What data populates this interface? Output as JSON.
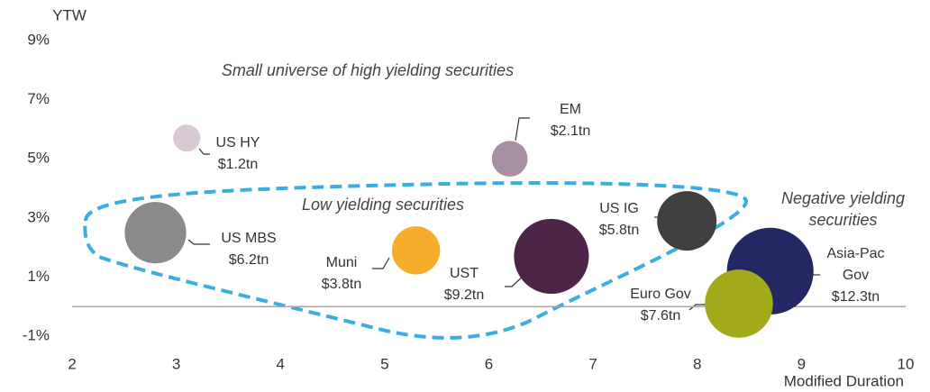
{
  "chart_data": {
    "type": "bubble",
    "x_label": "Modified Duration",
    "y_label": "YTW",
    "xlim": [
      2,
      10
    ],
    "xticks": [
      2,
      3,
      4,
      5,
      6,
      7,
      8,
      9,
      10
    ],
    "ylim": [
      -1,
      9
    ],
    "yticks": [
      {
        "value": -1,
        "label": "-1%"
      },
      {
        "value": 1,
        "label": "1%"
      },
      {
        "value": 3,
        "label": "3%"
      },
      {
        "value": 5,
        "label": "5%"
      },
      {
        "value": 7,
        "label": "7%"
      },
      {
        "value": 9,
        "label": "9%"
      }
    ],
    "annotations": [
      "Small universe of high yielding securities",
      "Low yielding securities",
      "Negative yielding securities"
    ],
    "series": [
      {
        "name": "US HY",
        "color": "#d9c9d4",
        "x": 3.1,
        "y": 5.7,
        "size": 1.2,
        "size_label": "$1.2tn"
      },
      {
        "name": "EM",
        "color": "#a88fa3",
        "x": 6.2,
        "y": 5.0,
        "size": 2.1,
        "size_label": "$2.1tn"
      },
      {
        "name": "US MBS",
        "color": "#8a8a8a",
        "x": 2.8,
        "y": 2.5,
        "size": 6.2,
        "size_label": "$6.2tn"
      },
      {
        "name": "Muni",
        "color": "#f5ad2b",
        "x": 5.3,
        "y": 1.9,
        "size": 3.8,
        "size_label": "$3.8tn"
      },
      {
        "name": "UST",
        "color": "#4d2347",
        "x": 6.6,
        "y": 1.7,
        "size": 9.2,
        "size_label": "$9.2tn"
      },
      {
        "name": "US IG",
        "color": "#404040",
        "x": 7.9,
        "y": 2.9,
        "size": 5.8,
        "size_label": "$5.8tn"
      },
      {
        "name": "Asia-Pac Gov",
        "color": "#232764",
        "x": 8.7,
        "y": 1.2,
        "size": 12.3,
        "size_label": "$12.3tn"
      },
      {
        "name": "Euro Gov",
        "color": "#a3aa1a",
        "x": 8.4,
        "y": 0.1,
        "size": 7.6,
        "size_label": "$7.6tn"
      }
    ]
  }
}
